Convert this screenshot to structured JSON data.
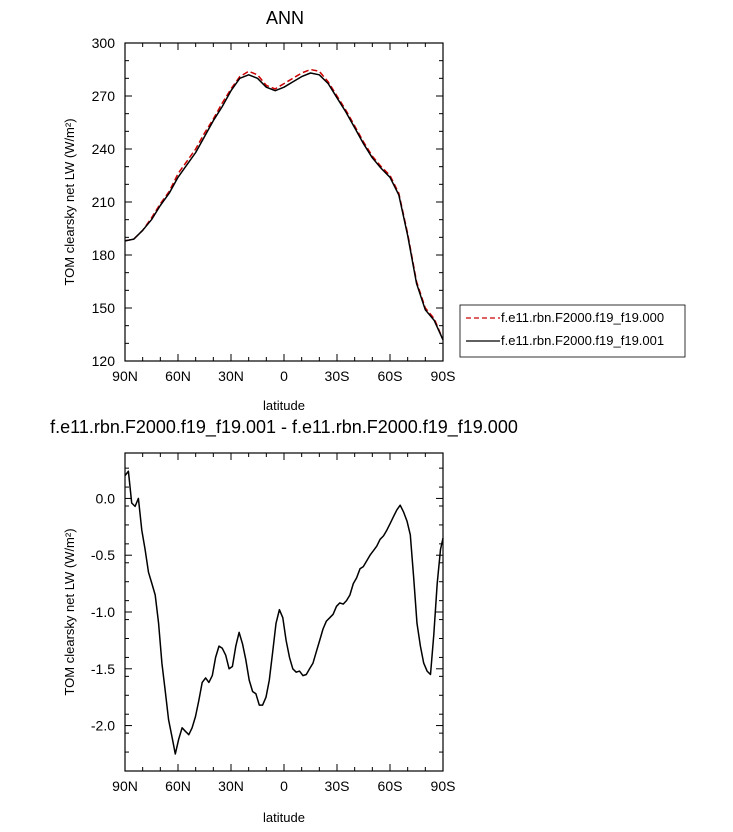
{
  "chart_data": [
    {
      "type": "line",
      "title": "ANN",
      "xlabel": "latitude",
      "ylabel": "TOM clearsky net LW (W/m²)",
      "x_direction": "north-to-south",
      "xlim": [
        90,
        -90
      ],
      "ylim": [
        120,
        300
      ],
      "x_ticks": [
        90,
        60,
        30,
        0,
        -30,
        -60,
        -90
      ],
      "x_tick_labels": [
        "90N",
        "60N",
        "30N",
        "0",
        "30S",
        "60S",
        "90S"
      ],
      "y_ticks": [
        120,
        150,
        180,
        210,
        240,
        270,
        300
      ],
      "y_tick_labels": [
        "120",
        "150",
        "180",
        "210",
        "240",
        "270",
        "300"
      ],
      "legend_position": "right",
      "x": [
        90,
        85,
        80,
        75,
        70,
        65,
        60,
        55,
        50,
        45,
        40,
        35,
        30,
        25,
        20,
        15,
        10,
        5,
        0,
        -5,
        -10,
        -15,
        -20,
        -25,
        -30,
        -35,
        -40,
        -45,
        -50,
        -55,
        -60,
        -65,
        -70,
        -75,
        -80,
        -85,
        -90
      ],
      "series": [
        {
          "name": "f.e11.rbn.F2000.f19_f19.000",
          "color": "#cc0000",
          "dash": "dashed",
          "values": [
            188,
            189,
            194,
            201,
            209,
            216,
            226,
            233,
            240,
            249,
            257,
            266,
            274,
            281,
            284,
            282,
            276,
            274,
            277,
            280,
            283,
            285,
            284,
            278,
            270,
            262,
            253,
            244,
            236,
            230,
            225,
            215,
            192,
            165,
            150,
            144,
            132
          ]
        },
        {
          "name": "f.e11.rbn.F2000.f19_f19.001",
          "color": "#000000",
          "dash": "solid",
          "values": [
            188,
            189,
            194,
            200,
            208,
            215,
            224,
            231,
            238,
            247,
            256,
            264,
            273,
            280,
            282,
            280,
            275,
            273,
            275,
            278,
            281,
            283,
            282,
            277,
            269,
            261,
            252,
            243,
            235,
            229,
            224,
            214,
            191,
            164,
            149,
            143,
            132
          ]
        }
      ]
    },
    {
      "type": "line",
      "title": "f.e11.rbn.F2000.f19_f19.001 - f.e11.rbn.F2000.f19_f19.000",
      "xlabel": "latitude",
      "ylabel": "TOM clearsky net LW (W/m²)",
      "x_direction": "north-to-south",
      "xlim": [
        90,
        -90
      ],
      "ylim": [
        -2.4,
        0.4
      ],
      "x_ticks": [
        90,
        60,
        30,
        0,
        -30,
        -60,
        -90
      ],
      "x_tick_labels": [
        "90N",
        "60N",
        "30N",
        "0",
        "30S",
        "60S",
        "90S"
      ],
      "y_ticks": [
        -2.0,
        -1.5,
        -1.0,
        -0.5,
        0.0
      ],
      "y_tick_labels": [
        "-2.0",
        "-1.5",
        "-1.0",
        "-0.5",
        "0.0"
      ],
      "x": [
        90,
        88.1,
        86.2,
        84.3,
        82.4,
        80.5,
        78.6,
        76.7,
        74.8,
        72.9,
        71.0,
        69.1,
        67.2,
        65.3,
        63.4,
        61.5,
        59.6,
        57.7,
        55.8,
        53.9,
        52.0,
        50.1,
        48.2,
        46.3,
        44.4,
        42.5,
        40.6,
        38.7,
        36.8,
        34.9,
        33.0,
        31.1,
        29.2,
        27.3,
        25.4,
        23.5,
        21.6,
        19.7,
        17.8,
        15.9,
        14.0,
        12.1,
        10.2,
        8.3,
        6.4,
        4.5,
        2.6,
        0.7,
        -1.2,
        -3.1,
        -5.0,
        -6.9,
        -8.8,
        -10.7,
        -12.6,
        -14.5,
        -16.4,
        -18.3,
        -20.2,
        -22.1,
        -24.0,
        -25.9,
        -27.8,
        -29.7,
        -31.6,
        -33.5,
        -35.4,
        -37.3,
        -39.2,
        -41.1,
        -43.0,
        -44.9,
        -46.8,
        -48.7,
        -50.6,
        -52.5,
        -54.4,
        -56.3,
        -58.2,
        -60.1,
        -62.0,
        -63.9,
        -65.8,
        -67.7,
        -69.6,
        -71.5,
        -73.4,
        -75.3,
        -77.2,
        -79.1,
        -81.0,
        -82.9,
        -84.8,
        -86.7,
        -88.6,
        -90
      ],
      "series": [
        {
          "name": "",
          "color": "#000000",
          "values": [
            0.2,
            0.24,
            -0.04,
            -0.07,
            0.0,
            -0.28,
            -0.45,
            -0.65,
            -0.75,
            -0.85,
            -1.1,
            -1.45,
            -1.7,
            -1.95,
            -2.1,
            -2.25,
            -2.12,
            -2.02,
            -2.05,
            -2.08,
            -2.02,
            -1.92,
            -1.78,
            -1.62,
            -1.58,
            -1.62,
            -1.56,
            -1.4,
            -1.3,
            -1.32,
            -1.38,
            -1.5,
            -1.48,
            -1.3,
            -1.18,
            -1.28,
            -1.42,
            -1.6,
            -1.7,
            -1.72,
            -1.82,
            -1.82,
            -1.75,
            -1.6,
            -1.35,
            -1.1,
            -0.98,
            -1.05,
            -1.25,
            -1.4,
            -1.5,
            -1.53,
            -1.52,
            -1.56,
            -1.55,
            -1.5,
            -1.45,
            -1.35,
            -1.25,
            -1.15,
            -1.08,
            -1.05,
            -1.02,
            -0.95,
            -0.92,
            -0.93,
            -0.9,
            -0.85,
            -0.75,
            -0.7,
            -0.62,
            -0.6,
            -0.55,
            -0.5,
            -0.46,
            -0.42,
            -0.36,
            -0.33,
            -0.28,
            -0.22,
            -0.16,
            -0.1,
            -0.06,
            -0.12,
            -0.2,
            -0.32,
            -0.7,
            -1.1,
            -1.3,
            -1.45,
            -1.52,
            -1.55,
            -1.2,
            -0.75,
            -0.45,
            -0.35
          ]
        }
      ]
    }
  ]
}
